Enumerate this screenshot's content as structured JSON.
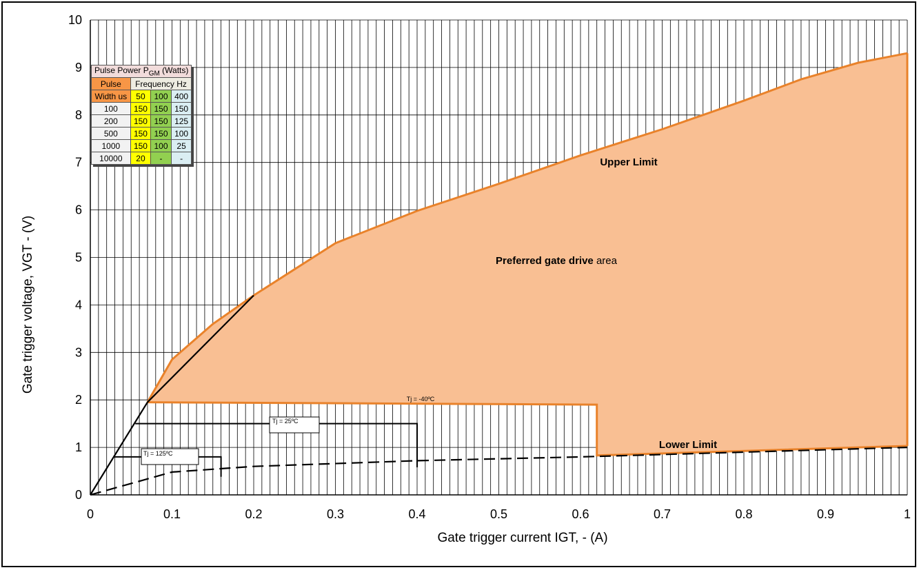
{
  "chart_data": {
    "type": "area",
    "xlabel": "Gate trigger current IGT, - (A)",
    "ylabel": "Gate trigger voltage, VGT - (V)",
    "xlim": [
      0,
      1
    ],
    "ylim": [
      0,
      10
    ],
    "x_ticks": [
      "0",
      "0.1",
      "0.2",
      "0.3",
      "0.4",
      "0.5",
      "0.6",
      "0.7",
      "0.8",
      "0.9",
      "1"
    ],
    "y_ticks": [
      "0",
      "1",
      "2",
      "3",
      "4",
      "5",
      "6",
      "7",
      "8",
      "9",
      "10"
    ],
    "grid": true,
    "preferred_area": {
      "fill_color": "#f9bf93",
      "edge_color": "#e9822a",
      "upper_limit": [
        [
          0.07,
          1.95
        ],
        [
          0.1,
          2.85
        ],
        [
          0.13,
          3.3
        ],
        [
          0.15,
          3.6
        ],
        [
          0.2,
          4.2
        ],
        [
          0.25,
          4.75
        ],
        [
          0.3,
          5.3
        ],
        [
          0.4,
          5.98
        ],
        [
          0.5,
          6.55
        ],
        [
          0.6,
          7.15
        ],
        [
          0.7,
          7.7
        ],
        [
          0.8,
          8.3
        ],
        [
          0.87,
          8.75
        ],
        [
          0.94,
          9.1
        ],
        [
          1.0,
          9.3
        ]
      ],
      "right_edge": [
        [
          1.0,
          9.3
        ],
        [
          1.0,
          1.03
        ]
      ],
      "lower_limit": [
        [
          1.0,
          1.03
        ],
        [
          0.62,
          0.83
        ],
        [
          0.62,
          1.9
        ],
        [
          0.07,
          1.95
        ]
      ]
    },
    "lines": {
      "load_line": [
        [
          0,
          0
        ],
        [
          0.07,
          1.95
        ],
        [
          0.2,
          4.2
        ]
      ],
      "lower_dashed": [
        [
          0,
          0
        ],
        [
          0.1,
          0.48
        ],
        [
          0.2,
          0.6
        ],
        [
          0.4,
          0.72
        ],
        [
          0.6,
          0.8
        ],
        [
          0.8,
          0.9
        ],
        [
          1.0,
          1.0
        ]
      ],
      "tj_25": [
        [
          0.055,
          1.5
        ],
        [
          0.4,
          1.5
        ],
        [
          0.4,
          0.58
        ]
      ],
      "tj_125": [
        [
          0.028,
          0.8
        ],
        [
          0.16,
          0.8
        ],
        [
          0.16,
          0.38
        ]
      ]
    },
    "annotations": {
      "upper_limit": "Upper Limit",
      "area_bold": "Preferred gate drive",
      "area_plain": "area",
      "lower_limit": "Lower Limit",
      "tj_minus40": "Tj = -40ºC",
      "tj_25": "Tj = 25ºC",
      "tj_125": "Tj = 125ºC"
    },
    "table": {
      "title_main": "Pulse Power P",
      "title_sub": "GM",
      "title_tail": "(Watts)",
      "pulse_label": "Pulse",
      "width_label": "Width us",
      "frequency_label": "Frequency Hz",
      "frequencies": [
        "50",
        "100",
        "400"
      ],
      "rows": [
        [
          "100",
          "150",
          "150",
          "150"
        ],
        [
          "200",
          "150",
          "150",
          "125"
        ],
        [
          "500",
          "150",
          "150",
          "100"
        ],
        [
          "1000",
          "150",
          "100",
          "25"
        ],
        [
          "10000",
          "20",
          "-",
          "-"
        ]
      ]
    }
  }
}
